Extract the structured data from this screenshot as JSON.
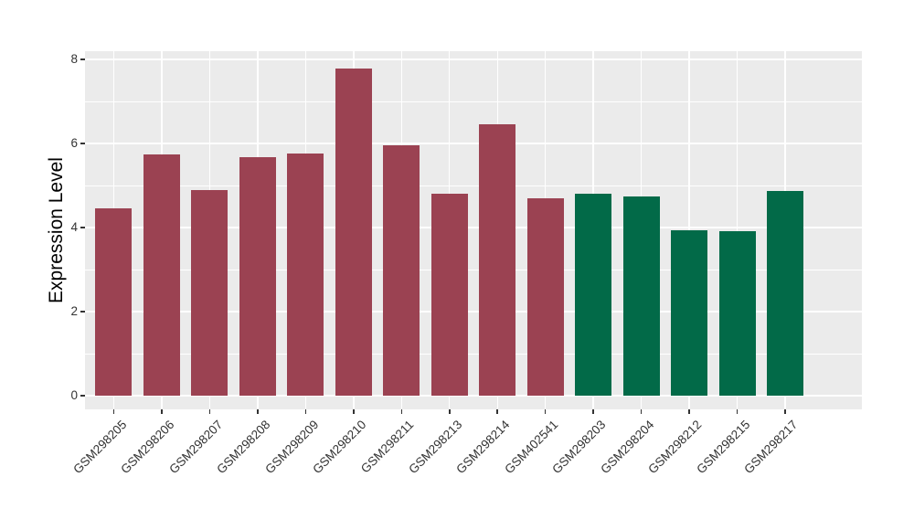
{
  "figure": {
    "background": "#ffffff",
    "panel_background": "#ebebeb",
    "gridline_color": "#ffffff",
    "axis_text_color": "#333333",
    "tick_color": "#333333"
  },
  "chart_data": {
    "type": "bar",
    "title": "",
    "xlabel": "",
    "ylabel": "Expression Level",
    "ylim": [
      0,
      8.2
    ],
    "yticks": [
      0,
      2,
      4,
      6,
      8
    ],
    "minor_gridlines": [
      1,
      3,
      5,
      7
    ],
    "grid": true,
    "legend_position": "none",
    "categories": [
      "GSM298205",
      "GSM298206",
      "GSM298207",
      "GSM298208",
      "GSM298209",
      "GSM298210",
      "GSM298211",
      "GSM298213",
      "GSM298214",
      "GSM402541",
      "GSM298203",
      "GSM298204",
      "GSM298212",
      "GSM298215",
      "GSM298217"
    ],
    "values": [
      4.45,
      5.74,
      4.9,
      5.68,
      5.77,
      7.78,
      5.96,
      4.81,
      6.46,
      4.69,
      4.81,
      4.75,
      3.94,
      3.92,
      4.87
    ],
    "bar_colors": [
      "#9B4252",
      "#9B4252",
      "#9B4252",
      "#9B4252",
      "#9B4252",
      "#9B4252",
      "#9B4252",
      "#9B4252",
      "#9B4252",
      "#9B4252",
      "#026A48",
      "#026A48",
      "#026A48",
      "#026A48",
      "#026A48"
    ],
    "color_palette": {
      "maroon": "#9B4252",
      "green": "#026A48"
    }
  }
}
